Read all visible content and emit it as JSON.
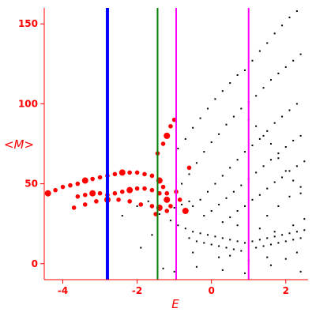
{
  "chart_data": {
    "type": "scatter",
    "title": "",
    "xlabel": "E",
    "ylabel": "<M>",
    "xlim": [
      -4.5,
      2.6
    ],
    "ylim": [
      -10,
      160
    ],
    "x_ticks": [
      -4,
      -2,
      0,
      2
    ],
    "y_ticks": [
      0,
      50,
      100,
      150
    ],
    "x_tick_labels": [
      "-4",
      "-2",
      "0",
      "2"
    ],
    "y_tick_labels": [
      "0",
      "50",
      "100",
      "150"
    ],
    "grid": false,
    "colors": {
      "axis": "#ff0000",
      "highlight": "#ff0000",
      "points": "#000000",
      "line_blue": "#0000ff",
      "line_green": "#008000",
      "line_magenta": "#ff00ff"
    },
    "vertical_lines": [
      {
        "x": -2.8,
        "color": "#0000ff"
      },
      {
        "x": -1.45,
        "color": "#008000"
      },
      {
        "x": -0.95,
        "color": "#ff00ff"
      },
      {
        "x": 1.0,
        "color": "#ff00ff"
      }
    ],
    "series": [
      {
        "color": "#000000",
        "marker_size": 1,
        "points": [
          [
            -1.4,
            31
          ],
          [
            -1.2,
            33
          ],
          [
            -1.0,
            35
          ],
          [
            -0.8,
            37
          ],
          [
            -0.6,
            39
          ],
          [
            -0.9,
            72
          ],
          [
            -0.7,
            78
          ],
          [
            -0.5,
            85
          ],
          [
            -0.3,
            91
          ],
          [
            -0.1,
            97
          ],
          [
            0.1,
            103
          ],
          [
            0.3,
            108
          ],
          [
            0.5,
            113
          ],
          [
            0.7,
            118
          ],
          [
            0.9,
            121
          ],
          [
            1.1,
            127
          ],
          [
            1.3,
            133
          ],
          [
            1.5,
            138
          ],
          [
            1.7,
            144
          ],
          [
            1.9,
            149
          ],
          [
            2.1,
            154
          ],
          [
            2.3,
            158
          ],
          [
            -0.8,
            50
          ],
          [
            -0.6,
            56
          ],
          [
            -0.4,
            63
          ],
          [
            -0.2,
            70
          ],
          [
            0.0,
            76
          ],
          [
            0.2,
            81
          ],
          [
            0.4,
            87
          ],
          [
            0.6,
            92
          ],
          [
            0.8,
            97
          ],
          [
            1.0,
            101
          ],
          [
            1.2,
            105
          ],
          [
            1.4,
            110
          ],
          [
            1.6,
            115
          ],
          [
            1.8,
            119
          ],
          [
            2.0,
            123
          ],
          [
            2.2,
            127
          ],
          [
            2.4,
            131
          ],
          [
            -0.5,
            36
          ],
          [
            -0.3,
            40
          ],
          [
            -0.1,
            45
          ],
          [
            0.1,
            50
          ],
          [
            0.3,
            55
          ],
          [
            0.5,
            60
          ],
          [
            0.7,
            65
          ],
          [
            0.9,
            70
          ],
          [
            1.1,
            74
          ],
          [
            1.3,
            78
          ],
          [
            1.5,
            83
          ],
          [
            1.7,
            88
          ],
          [
            1.9,
            92
          ],
          [
            2.1,
            96
          ],
          [
            2.3,
            100
          ],
          [
            -0.2,
            30
          ],
          [
            0.0,
            33
          ],
          [
            0.2,
            37
          ],
          [
            0.4,
            41
          ],
          [
            0.6,
            45
          ],
          [
            0.8,
            49
          ],
          [
            1.0,
            53
          ],
          [
            1.2,
            57
          ],
          [
            1.4,
            61
          ],
          [
            1.6,
            65
          ],
          [
            1.8,
            69
          ],
          [
            2.0,
            73
          ],
          [
            2.2,
            77
          ],
          [
            2.4,
            80
          ],
          [
            0.3,
            26
          ],
          [
            0.5,
            29
          ],
          [
            0.7,
            33
          ],
          [
            0.9,
            36
          ],
          [
            1.1,
            40
          ],
          [
            1.3,
            43
          ],
          [
            1.5,
            47
          ],
          [
            1.7,
            51
          ],
          [
            1.9,
            54
          ],
          [
            2.1,
            58
          ],
          [
            2.3,
            61
          ],
          [
            2.5,
            64
          ],
          [
            1.5,
            30
          ],
          [
            1.8,
            36
          ],
          [
            2.1,
            42
          ],
          [
            2.4,
            48
          ],
          [
            1.0,
            90
          ],
          [
            1.2,
            86
          ],
          [
            1.4,
            80
          ],
          [
            1.6,
            75
          ],
          [
            1.8,
            66
          ],
          [
            2.0,
            58
          ],
          [
            2.2,
            52
          ],
          [
            2.4,
            44
          ],
          [
            -1.1,
            27
          ],
          [
            -0.9,
            24
          ],
          [
            -0.7,
            22
          ],
          [
            -0.5,
            20
          ],
          [
            -0.3,
            19
          ],
          [
            -0.1,
            18
          ],
          [
            0.1,
            17
          ],
          [
            0.3,
            16
          ],
          [
            0.5,
            15
          ],
          [
            0.7,
            14
          ],
          [
            0.9,
            13
          ],
          [
            1.1,
            14
          ],
          [
            1.3,
            15
          ],
          [
            1.5,
            16
          ],
          [
            1.7,
            17
          ],
          [
            1.9,
            18
          ],
          [
            2.1,
            19
          ],
          [
            2.3,
            20
          ],
          [
            2.5,
            21
          ],
          [
            -0.6,
            16
          ],
          [
            -0.4,
            14
          ],
          [
            -0.2,
            13
          ],
          [
            0.0,
            12
          ],
          [
            0.2,
            11
          ],
          [
            0.4,
            10
          ],
          [
            0.6,
            9
          ],
          [
            0.8,
            8
          ],
          [
            1.2,
            10
          ],
          [
            1.4,
            11
          ],
          [
            1.6,
            12
          ],
          [
            1.8,
            13
          ],
          [
            2.0,
            14
          ],
          [
            2.2,
            15
          ],
          [
            2.4,
            16
          ],
          [
            0.5,
            5
          ],
          [
            1.0,
            2
          ],
          [
            1.5,
            4
          ],
          [
            2.0,
            3
          ],
          [
            2.3,
            7
          ],
          [
            -0.5,
            7
          ],
          [
            0.2,
            4
          ],
          [
            0.7,
            24
          ],
          [
            1.3,
            22
          ],
          [
            1.7,
            20
          ],
          [
            2.2,
            24
          ],
          [
            2.5,
            28
          ],
          [
            -1.3,
            -3
          ],
          [
            -1.0,
            -5
          ],
          [
            -0.4,
            -2
          ],
          [
            0.3,
            -4
          ],
          [
            0.9,
            -6
          ],
          [
            1.6,
            -1
          ],
          [
            2.4,
            -5
          ],
          [
            -2.0,
            36
          ],
          [
            -1.7,
            39
          ],
          [
            -2.8,
            27
          ],
          [
            -2.4,
            30
          ],
          [
            -1.9,
            10
          ],
          [
            -1.6,
            18
          ]
        ]
      },
      {
        "color": "#ff0000",
        "marker_size": 4,
        "points": [
          [
            -4.4,
            44
          ],
          [
            -4.2,
            46
          ],
          [
            -4.0,
            48
          ],
          [
            -3.8,
            49
          ],
          [
            -3.6,
            50
          ],
          [
            -3.4,
            52
          ],
          [
            -3.2,
            53
          ],
          [
            -3.0,
            54
          ],
          [
            -2.8,
            55
          ],
          [
            -2.6,
            56
          ],
          [
            -2.4,
            57
          ],
          [
            -2.2,
            57
          ],
          [
            -2.0,
            57
          ],
          [
            -1.8,
            56
          ],
          [
            -1.6,
            55
          ],
          [
            -1.4,
            52
          ],
          [
            -1.3,
            48
          ],
          [
            -1.2,
            44
          ],
          [
            -3.6,
            42
          ],
          [
            -3.4,
            43
          ],
          [
            -3.2,
            44
          ],
          [
            -3.0,
            44
          ],
          [
            -2.8,
            43
          ],
          [
            -2.6,
            44
          ],
          [
            -2.4,
            45
          ],
          [
            -2.2,
            46
          ],
          [
            -2.0,
            47
          ],
          [
            -1.8,
            47
          ],
          [
            -1.6,
            46
          ],
          [
            -1.4,
            44
          ],
          [
            -1.2,
            40
          ],
          [
            -1.1,
            36
          ],
          [
            -3.7,
            35
          ],
          [
            -3.4,
            37
          ],
          [
            -3.1,
            39
          ],
          [
            -2.8,
            40
          ],
          [
            -2.5,
            40
          ],
          [
            -2.2,
            39
          ],
          [
            -1.9,
            37
          ],
          [
            -1.6,
            36
          ],
          [
            -1.4,
            35
          ],
          [
            -1.2,
            33
          ],
          [
            -1.5,
            31
          ],
          [
            -1.45,
            69
          ],
          [
            -1.3,
            75
          ],
          [
            -1.2,
            80
          ],
          [
            -1.1,
            86
          ],
          [
            -1.0,
            90
          ],
          [
            -0.95,
            45
          ],
          [
            -0.85,
            40
          ],
          [
            -0.7,
            33
          ],
          [
            -0.6,
            60
          ]
        ]
      }
    ]
  }
}
